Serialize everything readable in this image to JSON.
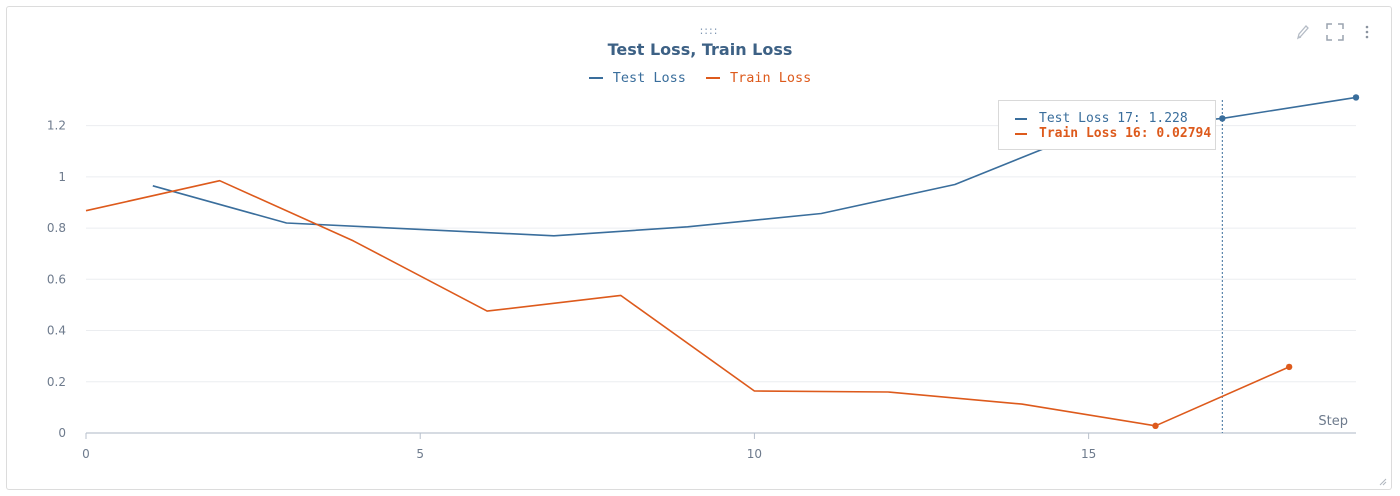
{
  "colors": {
    "test": "#3a6e9c",
    "train": "#dd5a1c",
    "title": "#3d6185",
    "grid": "#ebedf0",
    "axis": "#b8c0cc"
  },
  "panel": {
    "drag_icon": "drag-handle-icon",
    "toolbar_icons": [
      "edit-pencil-icon",
      "fullscreen-icon",
      "more-vertical-icon"
    ]
  },
  "chart_data": {
    "type": "line",
    "title": "Test Loss, Train Loss",
    "xlabel": "Step",
    "ylabel": "",
    "xlim": [
      0,
      19
    ],
    "ylim": [
      0,
      1.3
    ],
    "xticks": [
      0,
      5,
      10,
      15
    ],
    "yticks": [
      0,
      0.2,
      0.4,
      0.6,
      0.8,
      1,
      1.2
    ],
    "ytick_labels": [
      "0",
      "0.2",
      "0.4",
      "0.6",
      "0.8",
      "1",
      "1.2"
    ],
    "grid": true,
    "legend": "top-center",
    "series": [
      {
        "name": "Test Loss",
        "x": [
          1,
          3,
          5,
          7,
          9,
          11,
          13,
          15,
          17,
          19
        ],
        "y": [
          0.965,
          0.82,
          0.795,
          0.77,
          0.805,
          0.857,
          0.97,
          1.18,
          1.228,
          1.31
        ]
      },
      {
        "name": "Train Loss",
        "x": [
          0,
          2,
          4,
          6,
          8,
          10,
          12,
          14,
          16,
          18
        ],
        "y": [
          0.868,
          0.985,
          0.75,
          0.476,
          0.537,
          0.164,
          0.16,
          0.113,
          0.02794,
          0.258
        ]
      }
    ],
    "hover": {
      "x": 17,
      "rows": [
        {
          "label": "Test Loss 17: 1.228"
        },
        {
          "label": "Train Loss 16: 0.02794"
        }
      ]
    }
  }
}
